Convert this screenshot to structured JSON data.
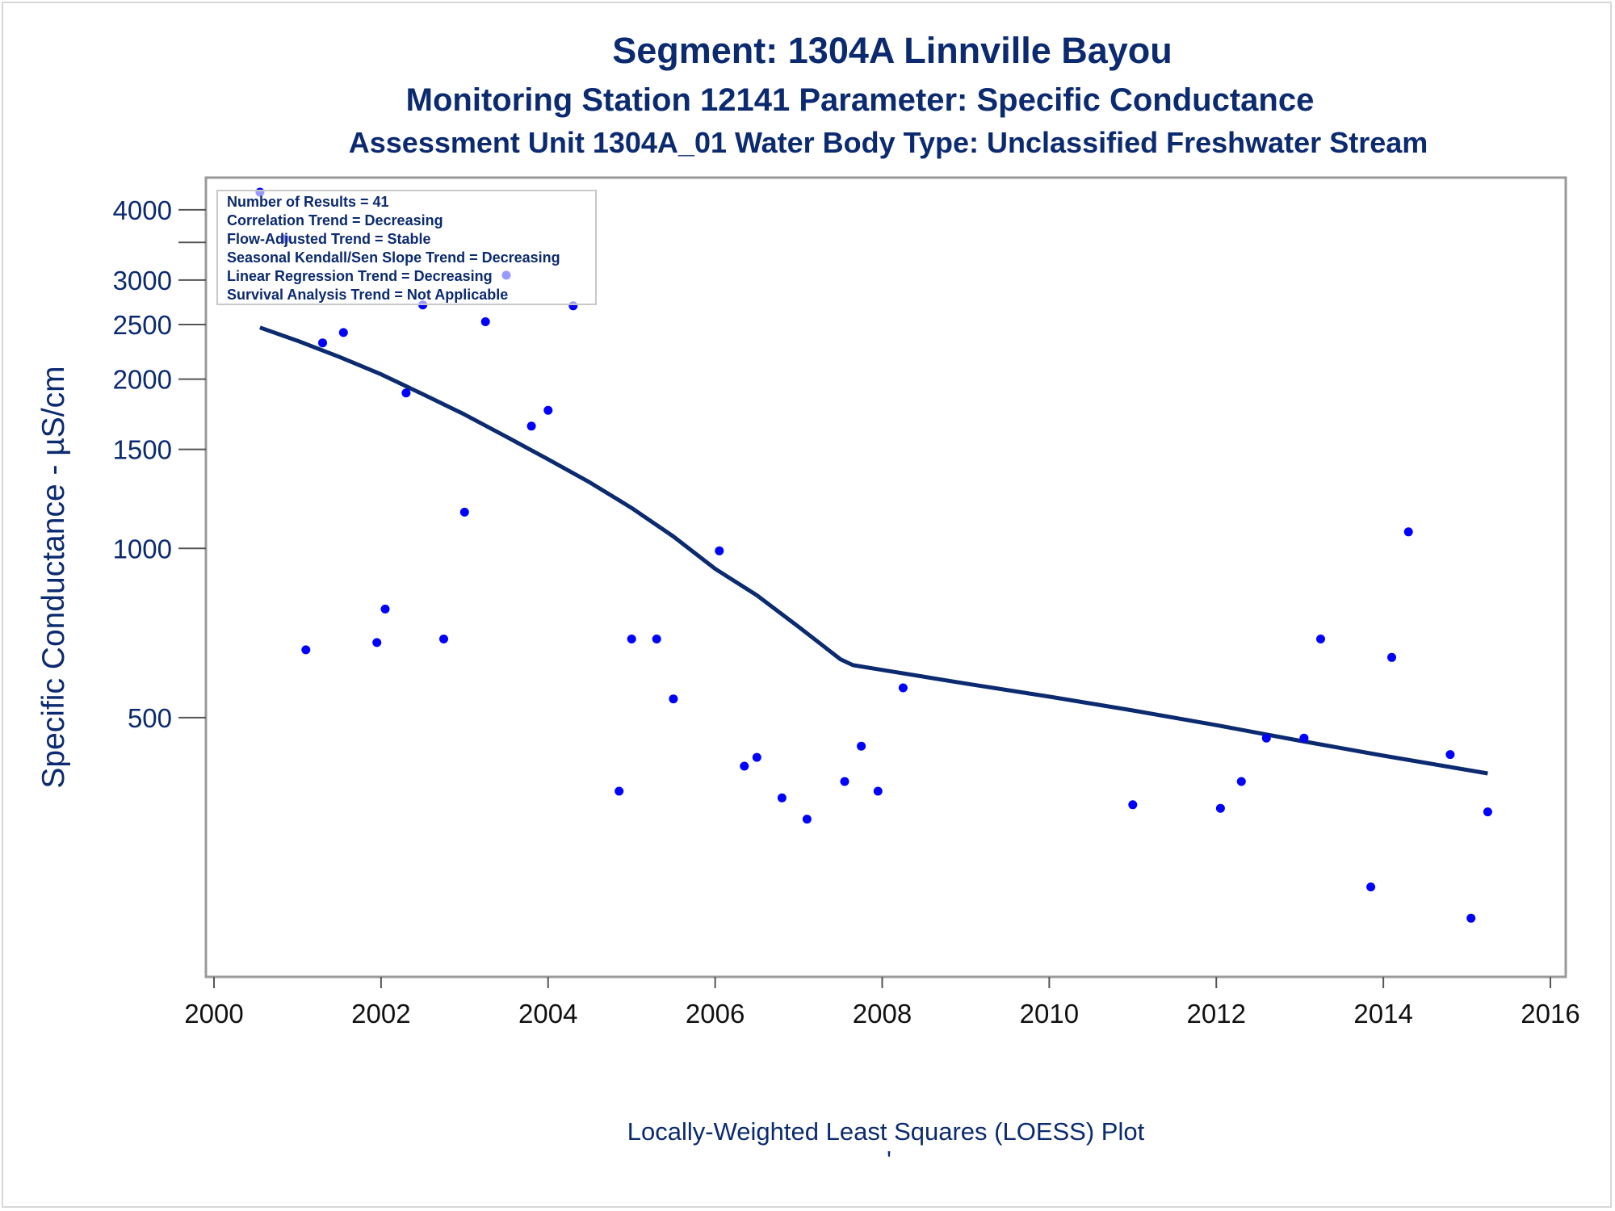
{
  "chart_data": {
    "type": "scatter",
    "title": "Segment: 1304A  Linnville Bayou",
    "subtitle": "Monitoring Station 12141 Parameter: Specific Conductance",
    "subtitle2": "Assessment Unit 1304A_01   Water Body Type: Unclassified Freshwater Stream",
    "ylabel": "Specific Conductance -  µS/cm",
    "xlabel": "",
    "footnote": "Locally-Weighted Least Squares (LOESS) Plot",
    "footnote_mark": "'",
    "y_scale": "log",
    "xlim": [
      2000,
      2016
    ],
    "ylim": [
      180,
      4300
    ],
    "x_ticks": [
      2000,
      2002,
      2004,
      2006,
      2008,
      2010,
      2012,
      2014,
      2016
    ],
    "x_tick_labels": [
      "2000",
      "2002",
      "2004",
      "2006",
      "2008",
      "2010",
      "2012",
      "2014",
      "2016"
    ],
    "y_ticks": [
      500,
      1000,
      1500,
      2000,
      2500,
      3000,
      4000
    ],
    "y_tick_labels": [
      "500",
      "1000",
      "1500",
      "2000",
      "2500",
      "3000",
      "4000"
    ],
    "y_minor_ticks": [
      3500
    ],
    "grid": false,
    "legend": "none",
    "colors": {
      "points": "#0000ff",
      "loess": "#0b2a6f",
      "text": "#0b2a6f",
      "frame": "#9a9a9a"
    },
    "stats_box": {
      "placement": "top-left",
      "lines": [
        "Number of Results = 41",
        "Correlation Trend = Decreasing",
        "Flow-Adjusted Trend = Stable",
        "Seasonal Kendall/Sen Slope Trend = Decreasing",
        "Linear Regression Trend = Decreasing",
        "Survival Analysis Trend = Not Applicable"
      ]
    },
    "points": [
      {
        "x": 2000.55,
        "y": 4300
      },
      {
        "x": 2000.85,
        "y": 3550
      },
      {
        "x": 2001.1,
        "y": 660
      },
      {
        "x": 2001.3,
        "y": 2320
      },
      {
        "x": 2001.55,
        "y": 2420
      },
      {
        "x": 2001.95,
        "y": 680
      },
      {
        "x": 2002.05,
        "y": 780
      },
      {
        "x": 2002.3,
        "y": 1890
      },
      {
        "x": 2002.5,
        "y": 2710
      },
      {
        "x": 2002.75,
        "y": 690
      },
      {
        "x": 2003.0,
        "y": 1160
      },
      {
        "x": 2003.25,
        "y": 2530
      },
      {
        "x": 2003.5,
        "y": 3060
      },
      {
        "x": 2003.8,
        "y": 1650
      },
      {
        "x": 2004.0,
        "y": 1760
      },
      {
        "x": 2004.3,
        "y": 2700
      },
      {
        "x": 2004.85,
        "y": 370
      },
      {
        "x": 2005.0,
        "y": 690
      },
      {
        "x": 2005.3,
        "y": 690
      },
      {
        "x": 2005.5,
        "y": 540
      },
      {
        "x": 2006.05,
        "y": 990
      },
      {
        "x": 2006.35,
        "y": 410
      },
      {
        "x": 2006.5,
        "y": 425
      },
      {
        "x": 2006.8,
        "y": 360
      },
      {
        "x": 2007.1,
        "y": 330
      },
      {
        "x": 2007.55,
        "y": 385
      },
      {
        "x": 2007.75,
        "y": 445
      },
      {
        "x": 2007.95,
        "y": 370
      },
      {
        "x": 2008.25,
        "y": 565
      },
      {
        "x": 2011.0,
        "y": 350
      },
      {
        "x": 2012.05,
        "y": 345
      },
      {
        "x": 2012.3,
        "y": 385
      },
      {
        "x": 2012.6,
        "y": 460
      },
      {
        "x": 2013.05,
        "y": 460
      },
      {
        "x": 2013.25,
        "y": 690
      },
      {
        "x": 2013.85,
        "y": 250
      },
      {
        "x": 2014.1,
        "y": 640
      },
      {
        "x": 2014.3,
        "y": 1070
      },
      {
        "x": 2014.8,
        "y": 430
      },
      {
        "x": 2015.05,
        "y": 220
      },
      {
        "x": 2015.25,
        "y": 340
      }
    ],
    "loess": [
      {
        "x": 2000.55,
        "y": 2470
      },
      {
        "x": 2001.0,
        "y": 2340
      },
      {
        "x": 2001.5,
        "y": 2190
      },
      {
        "x": 2002.0,
        "y": 2040
      },
      {
        "x": 2002.5,
        "y": 1880
      },
      {
        "x": 2003.0,
        "y": 1730
      },
      {
        "x": 2003.5,
        "y": 1580
      },
      {
        "x": 2004.0,
        "y": 1440
      },
      {
        "x": 2004.5,
        "y": 1310
      },
      {
        "x": 2005.0,
        "y": 1180
      },
      {
        "x": 2005.5,
        "y": 1050
      },
      {
        "x": 2006.0,
        "y": 920
      },
      {
        "x": 2006.5,
        "y": 825
      },
      {
        "x": 2007.0,
        "y": 725
      },
      {
        "x": 2007.5,
        "y": 635
      },
      {
        "x": 2007.65,
        "y": 620
      },
      {
        "x": 2008.0,
        "y": 608
      },
      {
        "x": 2009.0,
        "y": 575
      },
      {
        "x": 2010.0,
        "y": 545
      },
      {
        "x": 2011.0,
        "y": 515
      },
      {
        "x": 2012.0,
        "y": 485
      },
      {
        "x": 2013.0,
        "y": 455
      },
      {
        "x": 2014.0,
        "y": 428
      },
      {
        "x": 2015.25,
        "y": 398
      }
    ]
  }
}
